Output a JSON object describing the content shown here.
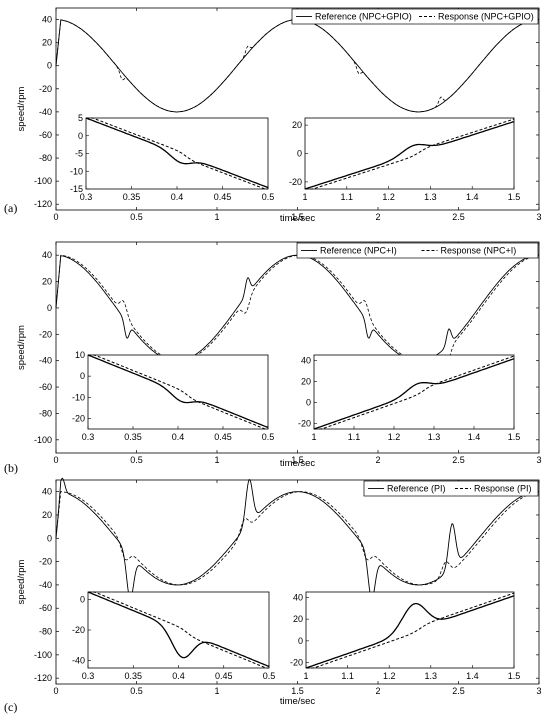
{
  "figure": {
    "panel_labels": [
      "(a)",
      "(b)",
      "(c)"
    ]
  },
  "chart_data": [
    {
      "type": "line",
      "panel": "(a)",
      "xlabel": "time/sec",
      "ylabel": "speed/rpm",
      "xlim": [
        0,
        3
      ],
      "ylim": [
        -125,
        50
      ],
      "xticks": [
        "0",
        "0.5",
        "1",
        "1.5",
        "2",
        "2.5",
        "3"
      ],
      "yticks": [
        "40",
        "20",
        "0",
        "-20",
        "-40",
        "-60",
        "-80",
        "-100",
        "-120"
      ],
      "legend_position": "top-right",
      "series": [
        {
          "name": "Reference (NPC+GPIO)",
          "style": "solid",
          "description_points_x": [
            0,
            0.02,
            0.5,
            1.0,
            1.5,
            2.0,
            2.5,
            3.0
          ],
          "description_points_y": [
            0,
            40,
            0,
            -40,
            40,
            0,
            -40,
            40
          ]
        },
        {
          "name": "Response (NPC+GPIO)",
          "style": "dashed",
          "description_points_x": [
            0,
            0.03,
            0.5,
            1.0,
            1.5,
            2.0,
            2.5,
            3.0
          ],
          "description_points_y": [
            0,
            39,
            0,
            -40,
            40,
            0,
            -40,
            40
          ]
        }
      ],
      "insets": [
        {
          "xlim": [
            0.3,
            0.5
          ],
          "ylim": [
            -15,
            5
          ],
          "xticks": [
            "0.3",
            "0.35",
            "0.4",
            "0.45",
            "0.5"
          ],
          "yticks": [
            "5",
            "0",
            "-5",
            "-10",
            "-15"
          ]
        },
        {
          "xlim": [
            1.0,
            1.5
          ],
          "ylim": [
            -25,
            25
          ],
          "xticks": [
            "1",
            "1.1",
            "1.2",
            "1.3",
            "1.4",
            "1.5"
          ],
          "yticks": [
            "20",
            "0",
            "-20"
          ]
        }
      ]
    },
    {
      "type": "line",
      "panel": "(b)",
      "xlabel": "time/sec",
      "ylabel": "speed/rpm",
      "xlim": [
        0,
        3
      ],
      "ylim": [
        -110,
        50
      ],
      "xticks": [
        "0",
        "0.5",
        "1",
        "1.5",
        "2",
        "2.5",
        "3"
      ],
      "yticks": [
        "40",
        "20",
        "0",
        "-20",
        "-40",
        "-60",
        "-80",
        "-100"
      ],
      "legend_position": "top-right",
      "series": [
        {
          "name": "Reference (NPC+I)",
          "style": "solid"
        },
        {
          "name": "Response (NPC+I)",
          "style": "dashed"
        }
      ],
      "insets": [
        {
          "xlim": [
            0.3,
            0.5
          ],
          "ylim": [
            -25,
            10
          ],
          "xticks": [
            "0.3",
            "0.35",
            "0.4",
            "0.45",
            "0.5"
          ],
          "yticks": [
            "10",
            "0",
            "-10",
            "-20"
          ]
        },
        {
          "xlim": [
            1.0,
            1.5
          ],
          "ylim": [
            -25,
            45
          ],
          "xticks": [
            "1",
            "1.1",
            "1.2",
            "1.3",
            "1.4",
            "1.5"
          ],
          "yticks": [
            "40",
            "20",
            "0",
            "-20"
          ]
        }
      ]
    },
    {
      "type": "line",
      "panel": "(c)",
      "xlabel": "time/sec",
      "ylabel": "speed/rpm",
      "xlim": [
        0,
        3
      ],
      "ylim": [
        -125,
        50
      ],
      "xticks": [
        "0",
        "0.5",
        "1",
        "1.5",
        "2",
        "2.5",
        "3"
      ],
      "yticks": [
        "40",
        "20",
        "0",
        "-20",
        "-40",
        "-60",
        "-80",
        "-100",
        "-120"
      ],
      "legend_position": "top-right",
      "series": [
        {
          "name": "Reference (PI)",
          "style": "solid"
        },
        {
          "name": "Response (PI)",
          "style": "dashed"
        }
      ],
      "insets": [
        {
          "xlim": [
            0.3,
            0.5
          ],
          "ylim": [
            -45,
            5
          ],
          "xticks": [
            "0.3",
            "0.35",
            "0.4",
            "0.45",
            "0.5"
          ],
          "yticks": [
            "0",
            "-20",
            "-40"
          ],
          "ytick_values": [
            0,
            -20,
            -40
          ]
        },
        {
          "xlim": [
            1.0,
            1.5
          ],
          "ylim": [
            -25,
            45
          ],
          "xticks": [
            "1",
            "1.1",
            "1.2",
            "1.3",
            "1.4",
            "1.5"
          ],
          "yticks": [
            "40",
            "20",
            "0",
            "-20"
          ]
        }
      ]
    }
  ]
}
